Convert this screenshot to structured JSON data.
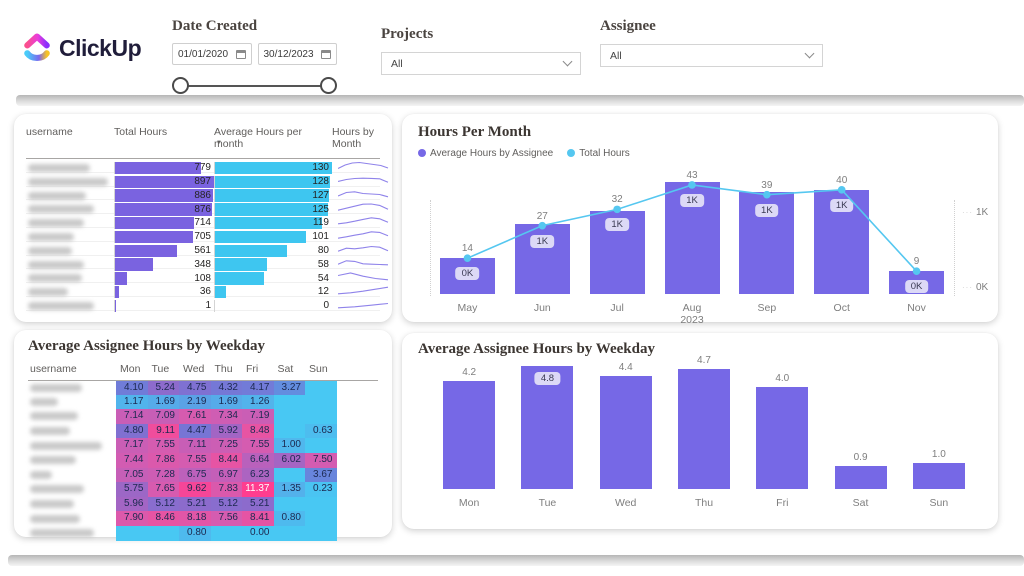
{
  "header": {
    "logo_text": "ClickUp",
    "date_filter": {
      "label": "Date Created",
      "start": "01/01/2020",
      "end": "30/12/2023"
    },
    "projects_filter": {
      "label": "Projects",
      "value": "All"
    },
    "assignee_filter": {
      "label": "Assignee",
      "value": "All"
    }
  },
  "colors": {
    "bar_purple": "#7668e6",
    "table_purple": "#7a63e0",
    "table_cyan": "#3ec6f0",
    "line_cyan": "#55c7f0",
    "spark_purple": "#8f83ea",
    "badge_bg": "#dcd9f6"
  },
  "hours_table": {
    "columns": {
      "username": "username",
      "total": "Total Hours",
      "avg": "Average Hours per month",
      "spark": "Hours by Month"
    },
    "total_max": 897,
    "avg_max": 130,
    "rows": [
      {
        "total": 779,
        "avg": 130,
        "name_w": 62,
        "spark": [
          25,
          60,
          80,
          85,
          75,
          65,
          55,
          30
        ]
      },
      {
        "total": 897,
        "avg": 128,
        "name_w": 80,
        "spark": [
          35,
          55,
          65,
          68,
          66,
          62,
          28
        ]
      },
      {
        "total": 886,
        "avg": 127,
        "name_w": 58,
        "spark": [
          30,
          65,
          72,
          55,
          50,
          45,
          22
        ]
      },
      {
        "total": 876,
        "avg": 125,
        "name_w": 66,
        "spark": [
          18,
          38,
          58,
          78,
          80,
          66,
          28
        ]
      },
      {
        "total": 714,
        "avg": 119,
        "name_w": 56,
        "spark": [
          22,
          32,
          48,
          66,
          82,
          72,
          38
        ]
      },
      {
        "total": 705,
        "avg": 101,
        "name_w": 46,
        "spark": [
          18,
          32,
          48,
          62,
          82,
          76,
          42
        ]
      },
      {
        "total": 561,
        "avg": 80,
        "name_w": 44,
        "spark": [
          28,
          58,
          52,
          62,
          75,
          68,
          32
        ]
      },
      {
        "total": 348,
        "avg": 58,
        "name_w": 56,
        "spark": [
          38,
          72,
          66,
          42,
          38,
          35,
          32
        ]
      },
      {
        "total": 108,
        "avg": 54,
        "name_w": 54,
        "spark": [
          55,
          80,
          48,
          25,
          12
        ]
      },
      {
        "total": 36,
        "avg": 12,
        "name_w": 40,
        "spark": [
          12,
          22,
          38,
          58,
          78
        ]
      },
      {
        "total": 1,
        "avg": 0,
        "name_w": 66,
        "spark": [
          12,
          22,
          38,
          55
        ]
      }
    ]
  },
  "chart_data": [
    {
      "type": "bar+line",
      "title": "Hours Per Month",
      "legend": [
        {
          "label": "Average Hours by Assignee",
          "color": "#7668e6",
          "series": "bar"
        },
        {
          "label": "Total Hours",
          "color": "#55c7f0",
          "series": "line"
        }
      ],
      "categories": [
        "May",
        "Jun",
        "Jul",
        "Aug",
        "Sep",
        "Oct",
        "Nov"
      ],
      "x_sublabel": {
        "index": 3,
        "text": "2023"
      },
      "bar_values": [
        14,
        27,
        32,
        43,
        39,
        40,
        9
      ],
      "bar_max": 43,
      "line_values_k": [
        0.44,
        0.84,
        1.04,
        1.34,
        1.22,
        1.28,
        0.28
      ],
      "line_labels": [
        "0K",
        "1K",
        "1K",
        "1K",
        "1K",
        "1K",
        "0K"
      ],
      "y_axis_right": {
        "ticks": [
          "1K",
          "0K"
        ],
        "max_k": 1.45
      }
    },
    {
      "type": "bar",
      "title": "Average Assignee Hours by Weekday",
      "categories": [
        "Mon",
        "Tue",
        "Wed",
        "Thu",
        "Fri",
        "Sat",
        "Sun"
      ],
      "values": [
        4.2,
        4.8,
        4.4,
        4.7,
        4.0,
        0.9,
        1.0
      ],
      "labels": [
        "4.2",
        "4.8",
        "4.4",
        "4.7",
        "4.0",
        "0.9",
        "1.0"
      ],
      "badge_index": 1,
      "ylim": [
        0,
        4.8
      ]
    }
  ],
  "heatmap": {
    "title": "Average Assignee Hours by Weekday",
    "username_header": "username",
    "day_headers": [
      "Mon",
      "Tue",
      "Wed",
      "Thu",
      "Fri",
      "Sat",
      "Sun"
    ],
    "color_stops": [
      {
        "v": 0,
        "rgb": [
          72,
          200,
          243
        ]
      },
      {
        "v": 2,
        "rgb": [
          88,
          166,
          231
        ]
      },
      {
        "v": 3.5,
        "rgb": [
          101,
          137,
          221
        ]
      },
      {
        "v": 4.5,
        "rgb": [
          120,
          116,
          213
        ]
      },
      {
        "v": 5.5,
        "rgb": [
          148,
          104,
          201
        ]
      },
      {
        "v": 6.5,
        "rgb": [
          181,
          98,
          190
        ]
      },
      {
        "v": 7.5,
        "rgb": [
          212,
          92,
          177
        ]
      },
      {
        "v": 8.7,
        "rgb": [
          235,
          82,
          160
        ]
      },
      {
        "v": 10,
        "rgb": [
          250,
          65,
          148
        ]
      },
      {
        "v": 11.5,
        "rgb": [
          255,
          61,
          143
        ]
      }
    ],
    "white_text_from": 10.5,
    "rows": [
      {
        "name_w": 52,
        "cells": [
          "4.10",
          "5.24",
          "4.75",
          "4.32",
          "4.17",
          "3.27",
          null
        ]
      },
      {
        "name_w": 28,
        "cells": [
          "1.17",
          "1.69",
          "2.19",
          "1.69",
          "1.26",
          null,
          null
        ]
      },
      {
        "name_w": 48,
        "cells": [
          "7.14",
          "7.09",
          "7.61",
          "7.34",
          "7.19",
          null,
          null
        ]
      },
      {
        "name_w": 40,
        "cells": [
          "4.80",
          "9.11",
          "4.47",
          "5.92",
          "8.48",
          null,
          "0.63"
        ]
      },
      {
        "name_w": 72,
        "cells": [
          "7.17",
          "7.55",
          "7.11",
          "7.25",
          "7.55",
          "1.00",
          null
        ]
      },
      {
        "name_w": 46,
        "cells": [
          "7.44",
          "7.86",
          "7.55",
          "8.44",
          "6.64",
          "6.02",
          "7.50"
        ]
      },
      {
        "name_w": 22,
        "cells": [
          "7.05",
          "7.28",
          "6.75",
          "6.97",
          "6.23",
          null,
          "3.67"
        ]
      },
      {
        "name_w": 54,
        "cells": [
          "5.75",
          "7.65",
          "9.62",
          "7.83",
          "11.37",
          "1.35",
          "0.23"
        ]
      },
      {
        "name_w": 44,
        "cells": [
          "5.96",
          "5.12",
          "5.21",
          "5.12",
          "5.21",
          null,
          null
        ]
      },
      {
        "name_w": 50,
        "cells": [
          "7.90",
          "8.46",
          "8.18",
          "7.56",
          "8.41",
          "0.80",
          null
        ]
      },
      {
        "name_w": 64,
        "cells": [
          null,
          null,
          "0.80",
          null,
          "0.00",
          null,
          null
        ]
      }
    ]
  }
}
